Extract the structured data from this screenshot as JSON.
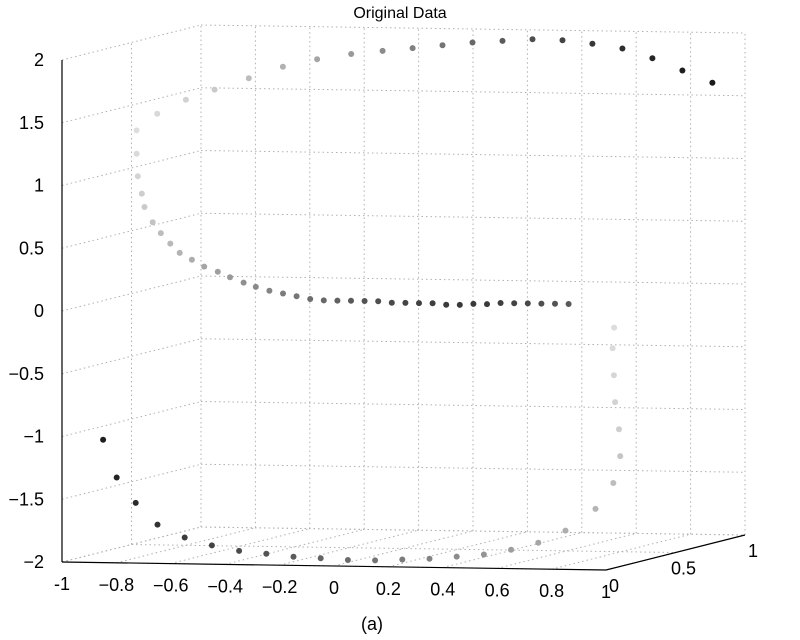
{
  "chart_data": {
    "type": "scatter",
    "title": "Original Data",
    "caption": "(a)",
    "xlim": [
      -1,
      1
    ],
    "ylim": [
      0,
      1
    ],
    "zlim": [
      -2,
      2
    ],
    "x_ticks": [
      "-1",
      "−0.8",
      "−0.6",
      "−0.4",
      "−0.2",
      "0",
      "0.2",
      "0.4",
      "0.6",
      "0.8",
      "1"
    ],
    "y_ticks": [
      "0",
      "0.5",
      "1"
    ],
    "z_ticks": [
      "2",
      "1.5",
      "1",
      "0.5",
      "0",
      "−0.5",
      "−1",
      "−1.5",
      "−2"
    ],
    "grid": true,
    "color_map": {
      "low": "#e2e2e2",
      "high": "#161616"
    },
    "points": [
      [
        -0.93,
        0.4,
        1.33,
        0.02
      ],
      [
        -0.92,
        0.38,
        1.15,
        0.04
      ],
      [
        -0.9,
        0.35,
        0.98,
        0.07
      ],
      [
        -0.87,
        0.32,
        0.85,
        0.1
      ],
      [
        -0.85,
        0.3,
        0.75,
        0.12
      ],
      [
        -0.82,
        0.3,
        0.63,
        0.15
      ],
      [
        -0.78,
        0.28,
        0.55,
        0.18
      ],
      [
        -0.74,
        0.27,
        0.47,
        0.2
      ],
      [
        -0.7,
        0.26,
        0.4,
        0.23
      ],
      [
        -0.65,
        0.25,
        0.35,
        0.26
      ],
      [
        -0.6,
        0.24,
        0.3,
        0.3
      ],
      [
        -0.55,
        0.24,
        0.26,
        0.33
      ],
      [
        -0.5,
        0.23,
        0.22,
        0.36
      ],
      [
        -0.45,
        0.23,
        0.18,
        0.4
      ],
      [
        -0.4,
        0.22,
        0.15,
        0.43
      ],
      [
        -0.35,
        0.22,
        0.12,
        0.46
      ],
      [
        -0.3,
        0.22,
        0.1,
        0.5
      ],
      [
        -0.25,
        0.22,
        0.08,
        0.53
      ],
      [
        -0.2,
        0.22,
        0.06,
        0.57
      ],
      [
        -0.15,
        0.22,
        0.05,
        0.6
      ],
      [
        -0.1,
        0.22,
        0.05,
        0.63
      ],
      [
        -0.05,
        0.22,
        0.05,
        0.67
      ],
      [
        0.0,
        0.22,
        0.05,
        0.7
      ],
      [
        0.05,
        0.22,
        0.05,
        0.72
      ],
      [
        0.1,
        0.22,
        0.04,
        0.75
      ],
      [
        0.15,
        0.22,
        0.04,
        0.77
      ],
      [
        0.2,
        0.22,
        0.04,
        0.79
      ],
      [
        0.25,
        0.22,
        0.04,
        0.8
      ],
      [
        0.3,
        0.22,
        0.03,
        0.82
      ],
      [
        0.35,
        0.22,
        0.03,
        0.83
      ],
      [
        0.4,
        0.22,
        0.04,
        0.83
      ],
      [
        0.45,
        0.22,
        0.04,
        0.82
      ],
      [
        0.5,
        0.22,
        0.05,
        0.8
      ],
      [
        0.55,
        0.22,
        0.05,
        0.78
      ],
      [
        0.6,
        0.22,
        0.05,
        0.75
      ],
      [
        0.65,
        0.22,
        0.05,
        0.72
      ],
      [
        0.7,
        0.22,
        0.05,
        0.7
      ],
      [
        0.75,
        0.22,
        0.05,
        0.67
      ],
      [
        -0.88,
        0.45,
        1.45,
        0.05
      ],
      [
        -0.8,
        0.5,
        1.55,
        0.08
      ],
      [
        -0.72,
        0.55,
        1.62,
        0.12
      ],
      [
        -0.62,
        0.6,
        1.7,
        0.18
      ],
      [
        -0.52,
        0.65,
        1.78,
        0.24
      ],
      [
        -0.42,
        0.7,
        1.83,
        0.3
      ],
      [
        -0.32,
        0.75,
        1.86,
        0.36
      ],
      [
        -0.22,
        0.78,
        1.88,
        0.42
      ],
      [
        -0.12,
        0.8,
        1.9,
        0.48
      ],
      [
        -0.02,
        0.82,
        1.92,
        0.54
      ],
      [
        0.08,
        0.84,
        1.94,
        0.6
      ],
      [
        0.18,
        0.86,
        1.95,
        0.66
      ],
      [
        0.28,
        0.88,
        1.96,
        0.72
      ],
      [
        0.38,
        0.9,
        1.95,
        0.78
      ],
      [
        0.48,
        0.92,
        1.92,
        0.84
      ],
      [
        0.58,
        0.94,
        1.88,
        0.88
      ],
      [
        0.68,
        0.96,
        1.8,
        0.92
      ],
      [
        0.78,
        0.98,
        1.7,
        0.96
      ],
      [
        0.88,
        1.0,
        1.6,
        0.98
      ],
      [
        -0.9,
        0.1,
        -1.05,
        0.96
      ],
      [
        -0.85,
        0.1,
        -1.35,
        0.93
      ],
      [
        -0.78,
        0.1,
        -1.55,
        0.9
      ],
      [
        -0.7,
        0.1,
        -1.72,
        0.86
      ],
      [
        -0.6,
        0.1,
        -1.82,
        0.82
      ],
      [
        -0.5,
        0.1,
        -1.88,
        0.78
      ],
      [
        -0.4,
        0.1,
        -1.92,
        0.74
      ],
      [
        -0.3,
        0.1,
        -1.94,
        0.7
      ],
      [
        -0.2,
        0.1,
        -1.96,
        0.66
      ],
      [
        -0.1,
        0.1,
        -1.97,
        0.62
      ],
      [
        0.0,
        0.1,
        -1.98,
        0.58
      ],
      [
        0.1,
        0.1,
        -1.98,
        0.54
      ],
      [
        0.2,
        0.1,
        -1.97,
        0.5
      ],
      [
        0.3,
        0.1,
        -1.96,
        0.46
      ],
      [
        0.4,
        0.1,
        -1.94,
        0.42
      ],
      [
        0.5,
        0.1,
        -1.92,
        0.38
      ],
      [
        0.6,
        0.1,
        -1.88,
        0.34
      ],
      [
        0.7,
        0.1,
        -1.82,
        0.3
      ],
      [
        0.8,
        0.1,
        -1.72,
        0.26
      ],
      [
        0.9,
        0.12,
        -1.55,
        0.22
      ],
      [
        0.95,
        0.15,
        -1.35,
        0.18
      ],
      [
        0.95,
        0.2,
        -1.15,
        0.14
      ],
      [
        0.92,
        0.25,
        -0.95,
        0.1
      ],
      [
        0.88,
        0.3,
        -0.75,
        0.08
      ],
      [
        0.85,
        0.35,
        -0.55,
        0.06
      ],
      [
        0.82,
        0.4,
        -0.35,
        0.04
      ],
      [
        0.8,
        0.45,
        -0.2,
        0.03
      ]
    ]
  }
}
